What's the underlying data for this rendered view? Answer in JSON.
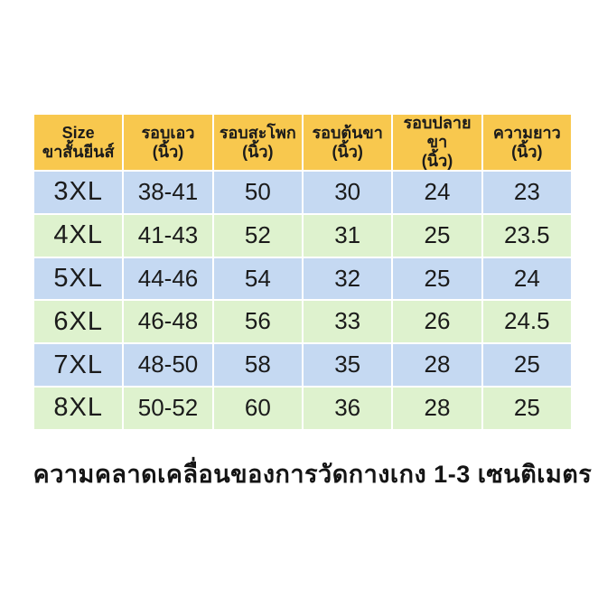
{
  "table": {
    "columns": [
      {
        "line1": "Size",
        "line2": "ขาสั้นยีนส์"
      },
      {
        "line1": "รอบเอว",
        "line2": "(นิ้ว)"
      },
      {
        "line1": "รอบสะโพก",
        "line2": "(นิ้ว)"
      },
      {
        "line1": "รอบต้นขา",
        "line2": "(นิ้ว)"
      },
      {
        "line1": "รอบปลายขา",
        "line2": "(นิ้ว)"
      },
      {
        "line1": "ความยาว",
        "line2": "(นิ้ว)"
      }
    ],
    "rows": [
      [
        "3XL",
        "38-41",
        "50",
        "30",
        "24",
        "23"
      ],
      [
        "4XL",
        "41-43",
        "52",
        "31",
        "25",
        "23.5"
      ],
      [
        "5XL",
        "44-46",
        "54",
        "32",
        "25",
        "24"
      ],
      [
        "6XL",
        "46-48",
        "56",
        "33",
        "26",
        "24.5"
      ],
      [
        "7XL",
        "48-50",
        "58",
        "35",
        "28",
        "25"
      ],
      [
        "8XL",
        "50-52",
        "60",
        "36",
        "28",
        "25"
      ]
    ]
  },
  "note": "ความคลาดเคลื่อนของการวัดกางเกง 1-3 เซนติเมตร",
  "colors": {
    "header_yellow": "#f8c84e",
    "row_blue": "#c5d9f2",
    "row_green": "#def2ce",
    "text": "#1b1b1b",
    "background": "#ffffff"
  }
}
